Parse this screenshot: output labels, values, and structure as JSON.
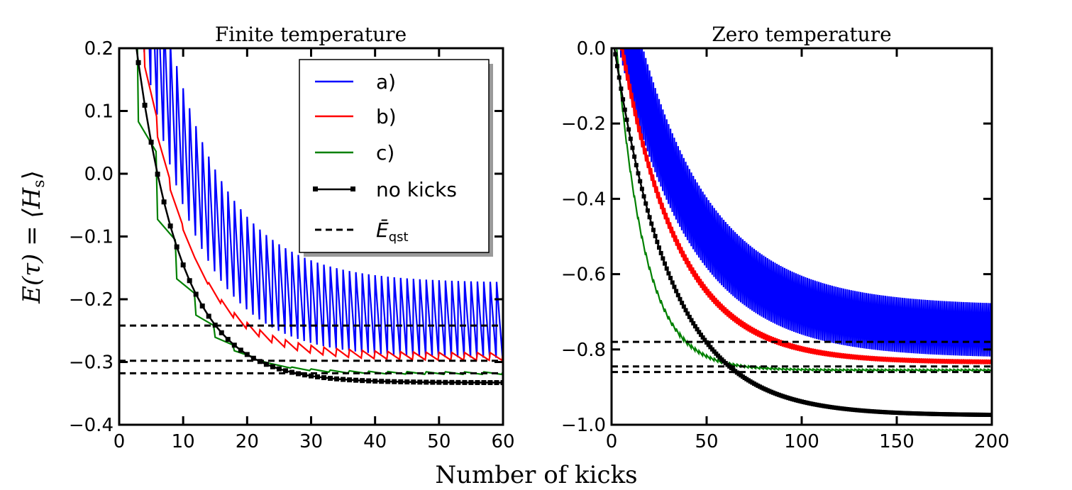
{
  "figure": {
    "xlabel": "Number of kicks",
    "ylabel": "E(τ) = ⟨H",
    "ylabel_sub": "s",
    "ylabel_end": "⟩"
  },
  "legend": [
    {
      "label": "a)",
      "style": "line",
      "color": "#0000ff"
    },
    {
      "label": "b)",
      "style": "line",
      "color": "#ff0000"
    },
    {
      "label": "c)",
      "style": "line",
      "color": "#008000"
    },
    {
      "label": "no kicks",
      "style": "line-marker",
      "color": "#000000"
    },
    {
      "label": "Ē",
      "label_sub": "qst",
      "style": "dashed",
      "color": "#000000"
    }
  ],
  "chart_data": [
    {
      "type": "line",
      "title": "Finite temperature",
      "xlim": [
        0,
        60
      ],
      "ylim": [
        -0.4,
        0.2
      ],
      "xticks": [
        0,
        10,
        20,
        30,
        40,
        50,
        60
      ],
      "xtick_labels": [
        "0",
        "10",
        "20",
        "30",
        "40",
        "50",
        "60"
      ],
      "yticks": [
        -0.4,
        -0.3,
        -0.2,
        -0.1,
        0.0,
        0.1,
        0.2
      ],
      "ytick_labels": [
        "−0.4",
        "−0.3",
        "−0.2",
        "−0.1",
        "0.0",
        "0.1",
        "0.2"
      ],
      "series": [
        {
          "name": "a)",
          "color": "#0000ff",
          "kind": "sawtooth",
          "start": 0.55,
          "asymptote": -0.24,
          "tau": 9,
          "amp_start": 0.35,
          "amp_end": 0.12,
          "period": 1
        },
        {
          "name": "b)",
          "color": "#ff0000",
          "kind": "sawtooth",
          "start": 0.45,
          "asymptote": -0.292,
          "tau": 7,
          "amp_start": 0.12,
          "amp_end": 0.012,
          "period": 2
        },
        {
          "name": "c)",
          "color": "#008000",
          "kind": "sawtooth",
          "start": 0.3,
          "asymptote": -0.318,
          "tau": 6,
          "amp_start": 0.07,
          "amp_end": 0.004,
          "period": 3
        },
        {
          "name": "no kicks",
          "color": "#000000",
          "kind": "smooth",
          "start": 0.45,
          "asymptote": -0.333,
          "tau": 7,
          "marker_step": 1
        },
        {
          "name": "Ē_qst (a)",
          "color": "#000000",
          "kind": "hline",
          "value": -0.242
        },
        {
          "name": "Ē_qst (b)",
          "color": "#000000",
          "kind": "hline",
          "value": -0.298
        },
        {
          "name": "Ē_qst (c)",
          "color": "#000000",
          "kind": "hline",
          "value": -0.318
        }
      ]
    },
    {
      "type": "line",
      "title": "Zero temperature",
      "xlim": [
        0,
        200
      ],
      "ylim": [
        -1.0,
        0.0
      ],
      "xticks": [
        0,
        50,
        100,
        150,
        200
      ],
      "xtick_labels": [
        "0",
        "50",
        "100",
        "150",
        "200"
      ],
      "yticks": [
        -1.0,
        -0.8,
        -0.6,
        -0.4,
        -0.2,
        0.0
      ],
      "ytick_labels": [
        "−1.0",
        "−0.8",
        "−0.6",
        "−0.4",
        "−0.2",
        "0.0"
      ],
      "series": [
        {
          "name": "a)",
          "color": "#0000ff",
          "kind": "sawtooth",
          "start": 0.2,
          "asymptote": -0.76,
          "tau": 38,
          "amp_start": 0.3,
          "amp_end": 0.14,
          "period": 1
        },
        {
          "name": "b)",
          "color": "#ff0000",
          "kind": "sawtooth",
          "start": 0.15,
          "asymptote": -0.835,
          "tau": 30,
          "amp_start": 0.08,
          "amp_end": 0.012,
          "period": 1
        },
        {
          "name": "c)",
          "color": "#008000",
          "kind": "sawtooth",
          "start": 0.1,
          "asymptote": -0.855,
          "tau": 15,
          "amp_start": 0.12,
          "amp_end": 0.004,
          "period": 2
        },
        {
          "name": "no kicks",
          "color": "#000000",
          "kind": "smooth",
          "start": 0.05,
          "asymptote": -0.975,
          "tau": 30,
          "marker_step": 1
        },
        {
          "name": "Ē_qst (a)",
          "color": "#000000",
          "kind": "hline",
          "value": -0.78
        },
        {
          "name": "Ē_qst (b)",
          "color": "#000000",
          "kind": "hline",
          "value": -0.845
        },
        {
          "name": "Ē_qst (c)",
          "color": "#000000",
          "kind": "hline",
          "value": -0.86
        }
      ]
    }
  ]
}
